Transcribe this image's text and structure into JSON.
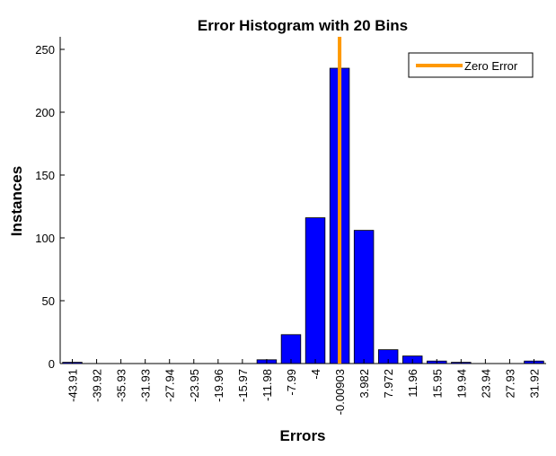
{
  "chart_data": {
    "type": "bar",
    "title": "Error Histogram with 20 Bins",
    "xlabel": "Errors",
    "ylabel": "Instances",
    "categories": [
      "-43.91",
      "-39.92",
      "-35.93",
      "-31.93",
      "-27.94",
      "-23.95",
      "-19.96",
      "-15.97",
      "-11.98",
      "-7.99",
      "-4",
      "-0.00903",
      "3.982",
      "7.972",
      "11.96",
      "15.95",
      "19.94",
      "23.94",
      "27.93",
      "31.92"
    ],
    "values": [
      1,
      0,
      0,
      0,
      0,
      0,
      0,
      0,
      3,
      23,
      116,
      235,
      106,
      11,
      6,
      2,
      1,
      0,
      0,
      2
    ],
    "ylim": [
      0,
      260
    ],
    "yticks": [
      0,
      50,
      100,
      150,
      200,
      250
    ],
    "reference_line": {
      "label": "Zero Error",
      "x_category_index": 11
    },
    "legend_placement": "top-right",
    "grid": false,
    "colors": {
      "bars": "#0000ff",
      "bar_edge": "#000000",
      "zero_error_line": "#ff9900"
    }
  }
}
